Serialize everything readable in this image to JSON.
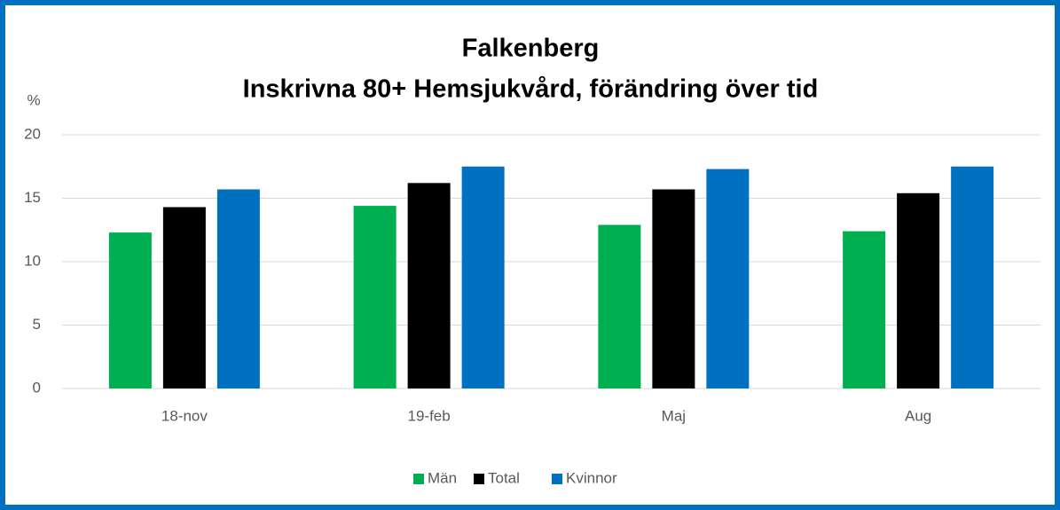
{
  "chart_data": {
    "type": "bar",
    "title": "Falkenberg",
    "subtitle": "Inskrivna 80+ Hemsjukvård, förändring över tid",
    "y_label": "%",
    "categories": [
      "18-nov",
      "19-feb",
      "Maj",
      "Aug"
    ],
    "series": [
      {
        "name": "Män",
        "color": "#00b050",
        "values": [
          12.3,
          14.4,
          12.9,
          12.4
        ]
      },
      {
        "name": "Total",
        "color": "#000000",
        "values": [
          14.3,
          16.2,
          15.7,
          15.4
        ]
      },
      {
        "name": "Kvinnor",
        "color": "#0070c0",
        "values": [
          15.7,
          17.5,
          17.3,
          17.5
        ]
      }
    ],
    "ylim": [
      0,
      20
    ],
    "yticks": [
      0,
      5,
      10,
      15,
      20
    ],
    "grid": true,
    "legend": "bottom"
  }
}
